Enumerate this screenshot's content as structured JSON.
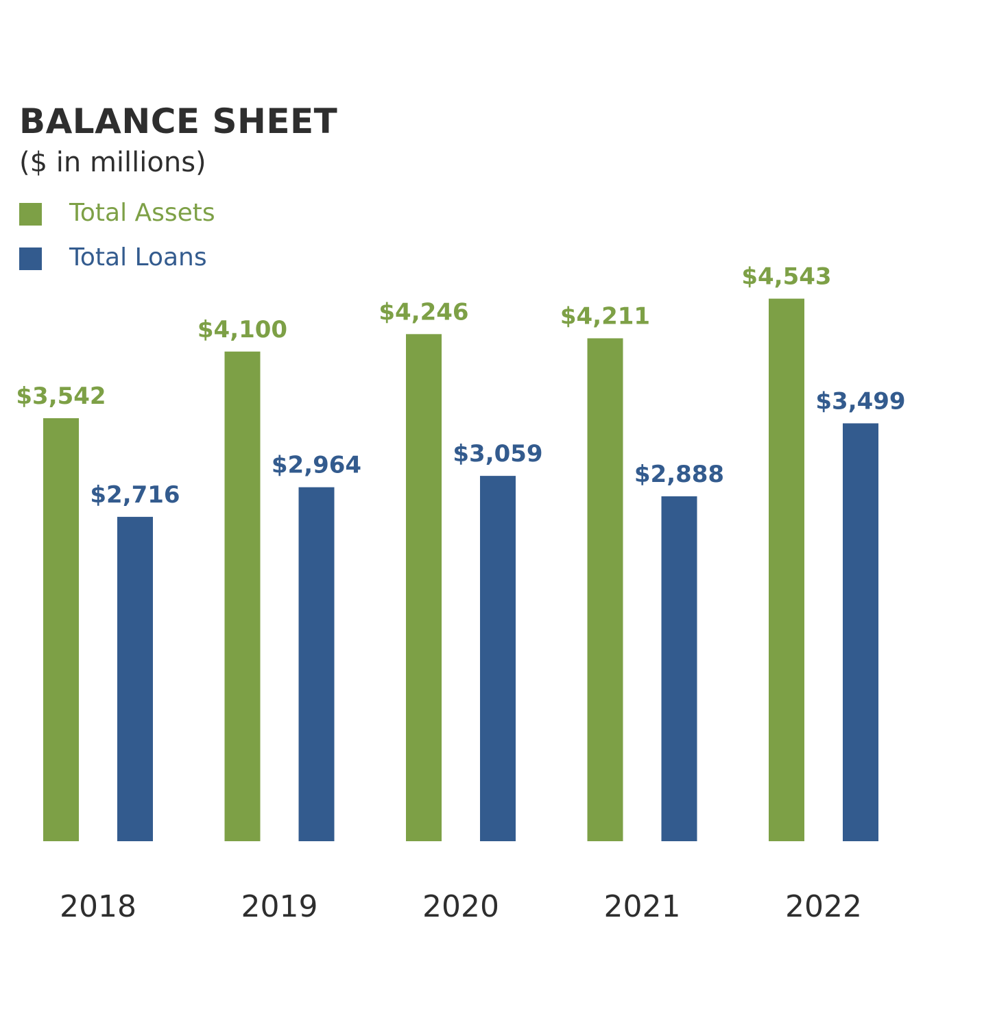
{
  "colors": {
    "assets": "#7da046",
    "loans": "#335b8e",
    "text": "#2e2e2e"
  },
  "chart_data": {
    "type": "bar",
    "title": "BALANCE SHEET",
    "subtitle": "($ in millions)",
    "categories": [
      "2018",
      "2019",
      "2020",
      "2021",
      "2022"
    ],
    "series": [
      {
        "name": "Total Assets",
        "values": [
          3542,
          4100,
          4246,
          4211,
          4543
        ],
        "labels": [
          "$3,542",
          "$4,100",
          "$4,246",
          "$4,211",
          "$4,543"
        ]
      },
      {
        "name": "Total Loans",
        "values": [
          2716,
          2964,
          3059,
          2888,
          3499
        ],
        "labels": [
          "$2,716",
          "$2,964",
          "$3,059",
          "$2,888",
          "$3,499"
        ]
      }
    ],
    "legend": [
      {
        "label": "Total Assets",
        "series": "assets"
      },
      {
        "label": "Total Loans",
        "series": "loans"
      }
    ],
    "xlabel": "",
    "ylabel": "",
    "ylim": [
      0,
      4600
    ],
    "grid": false,
    "legend_position": "top-left"
  }
}
